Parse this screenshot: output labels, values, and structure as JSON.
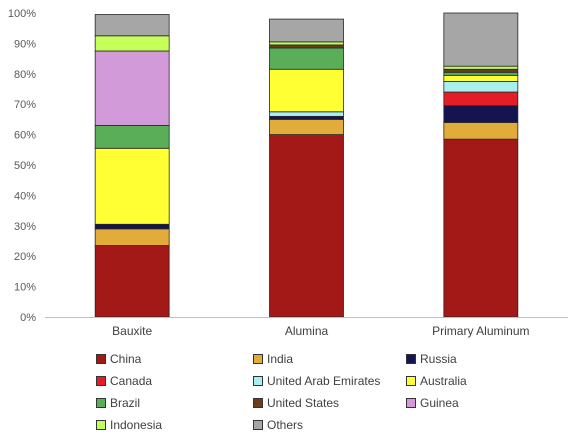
{
  "chart_data": {
    "type": "bar",
    "stacked": true,
    "categories": [
      "Bauxite",
      "Alumina",
      "Primary Aluminum"
    ],
    "y_ticks": [
      "0%",
      "10%",
      "20%",
      "30%",
      "40%",
      "50%",
      "60%",
      "70%",
      "80%",
      "90%",
      "100%"
    ],
    "ylim": [
      0,
      100
    ],
    "grid": false,
    "legend_position": "bottom",
    "series": [
      {
        "name": "China",
        "color": "#A21918",
        "values": [
          23.5,
          60,
          58.5
        ]
      },
      {
        "name": "India",
        "color": "#E2AC3B",
        "values": [
          5.5,
          5,
          5.5
        ]
      },
      {
        "name": "Russia",
        "color": "#141450",
        "values": [
          1.5,
          1,
          5.5
        ]
      },
      {
        "name": "Canada",
        "color": "#E41E26",
        "values": [
          0,
          0,
          4.5
        ]
      },
      {
        "name": "United Arab Emirates",
        "color": "#A8F0F0",
        "values": [
          0,
          1.5,
          3.5
        ]
      },
      {
        "name": "Australia",
        "color": "#FFFF33",
        "values": [
          25,
          14,
          2
        ]
      },
      {
        "name": "Brazil",
        "color": "#5BAE58",
        "values": [
          7.5,
          7,
          1
        ]
      },
      {
        "name": "United States",
        "color": "#6B3E1A",
        "values": [
          0,
          1,
          1
        ]
      },
      {
        "name": "Guinea",
        "color": "#D39AD9",
        "values": [
          24.5,
          0,
          0
        ]
      },
      {
        "name": "Indonesia",
        "color": "#C6FF5A",
        "values": [
          5,
          1,
          1
        ]
      },
      {
        "name": "Others",
        "color": "#A6A6A6",
        "values": [
          7,
          7.5,
          17.5
        ]
      }
    ]
  }
}
